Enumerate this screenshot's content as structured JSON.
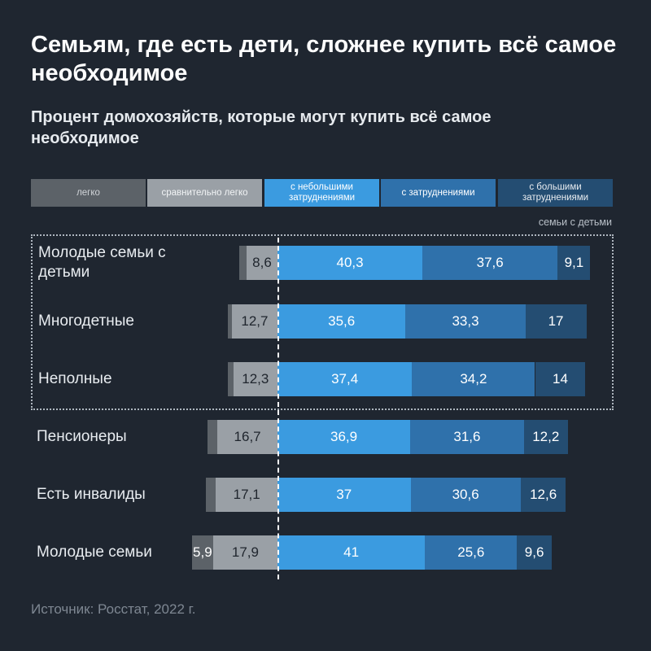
{
  "title": "Семьям, где есть дети, сложнее купить всё самое необходимое",
  "subtitle": "Процент домохозяйств, которые могут купить всё самое необходимое",
  "group_label": "семьи с детьми",
  "source": "Источник: Росстат, 2022 г.",
  "legend": [
    {
      "label": "легко",
      "color": "#5c6268",
      "text_color": "#d0d4d8"
    },
    {
      "label": "сравнительно легко",
      "color": "#9aa0a6",
      "text_color": "#f2f4f6"
    },
    {
      "label": "с небольшими затруднениями",
      "color": "#3b9be0",
      "text_color": "#ffffff"
    },
    {
      "label": "с затруднениями",
      "color": "#2f71ab",
      "text_color": "#ffffff"
    },
    {
      "label": "с большими затруднениями",
      "color": "#244d72",
      "text_color": "#e8ecf0"
    }
  ],
  "chart_data": {
    "type": "bar",
    "orientation": "horizontal-diverging-stacked",
    "title": "Семьям, где есть дети, сложнее купить всё самое необходимое",
    "subtitle": "Процент домохозяйств, которые могут купить всё самое необходимое",
    "unit": "%",
    "categories": [
      "Молодые семьи с детьми",
      "Многодетные",
      "Неполные",
      "Пенсионеры",
      "Есть инвалиды",
      "Молодые семьи"
    ],
    "series": [
      {
        "name": "легко",
        "values": [
          2.0,
          1.2,
          1.6,
          2.7,
          2.8,
          5.9
        ],
        "labels": [
          "",
          "",
          "",
          "",
          "",
          "5,9"
        ]
      },
      {
        "name": "сравнительно легко",
        "values": [
          8.6,
          12.7,
          12.3,
          16.7,
          17.1,
          17.9
        ],
        "labels": [
          "8,6",
          "12,7",
          "12,3",
          "16,7",
          "17,1",
          "17,9"
        ]
      },
      {
        "name": "с небольшими затруднениями",
        "values": [
          40.3,
          35.6,
          37.4,
          36.9,
          37.0,
          41.0
        ],
        "labels": [
          "40,3",
          "35,6",
          "37,4",
          "36,9",
          "37",
          "41"
        ]
      },
      {
        "name": "с затруднениями",
        "values": [
          37.6,
          33.3,
          34.2,
          31.6,
          30.6,
          25.6
        ],
        "labels": [
          "37,6",
          "33,3",
          "34,2",
          "31,6",
          "30,6",
          "25,6"
        ]
      },
      {
        "name": "с большими затруднениями",
        "values": [
          9.1,
          17.0,
          14.0,
          12.2,
          12.6,
          9.6
        ],
        "labels": [
          "9,1",
          "17",
          "14",
          "12,2",
          "12,6",
          "9,6"
        ]
      }
    ],
    "baseline": "between 'сравнительно легко' and 'с небольшими затруднениями'",
    "highlight_group": {
      "label": "семьи с детьми",
      "categories": [
        "Молодые семьи с детьми",
        "Многодетные",
        "Неполные"
      ]
    }
  }
}
